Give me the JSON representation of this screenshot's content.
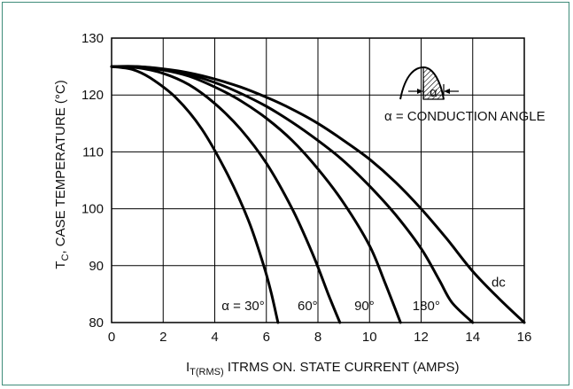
{
  "colors": {
    "frame": "#3f8c7a",
    "ink": "#000000"
  },
  "chart_data": {
    "type": "line",
    "ylabel_main": "T",
    "ylabel_sub": "C",
    "ylabel_rest": ", CASE TEMPERATURE (°C)",
    "xlabel_main": "I",
    "xlabel_sub": "T(RMS)",
    "xlabel_rest": " ITRMS ON. STATE CURRENT (AMPS)",
    "xlim": [
      0,
      16
    ],
    "ylim": [
      80,
      130
    ],
    "x_ticks": [
      0,
      2,
      4,
      6,
      8,
      10,
      12,
      14,
      16
    ],
    "y_ticks": [
      80,
      90,
      100,
      110,
      120,
      130
    ],
    "grid": true,
    "annotation": "α = CONDUCTION ANGLE",
    "inset_symbol": "α",
    "series": [
      {
        "name": "α = 30°",
        "points": [
          [
            0,
            125
          ],
          [
            0.8,
            124.5
          ],
          [
            1.5,
            123
          ],
          [
            2.5,
            119.5
          ],
          [
            3.5,
            114
          ],
          [
            4.5,
            106
          ],
          [
            5.3,
            98
          ],
          [
            5.9,
            90
          ],
          [
            6.2,
            85
          ],
          [
            6.45,
            80
          ]
        ]
      },
      {
        "name": "60°",
        "points": [
          [
            0,
            125
          ],
          [
            1,
            124.8
          ],
          [
            2,
            123.8
          ],
          [
            3,
            121.8
          ],
          [
            4,
            118.5
          ],
          [
            5,
            114
          ],
          [
            6,
            108
          ],
          [
            7,
            100
          ],
          [
            7.8,
            92
          ],
          [
            8.4,
            85
          ],
          [
            8.85,
            80
          ]
        ]
      },
      {
        "name": "90°",
        "points": [
          [
            0,
            125
          ],
          [
            1,
            124.9
          ],
          [
            2,
            124.4
          ],
          [
            3,
            123.3
          ],
          [
            4,
            121.4
          ],
          [
            5,
            119
          ],
          [
            6,
            115.9
          ],
          [
            7,
            112
          ],
          [
            8,
            107
          ],
          [
            9,
            101
          ],
          [
            10,
            93.5
          ],
          [
            10.6,
            87
          ],
          [
            11.2,
            80
          ]
        ]
      },
      {
        "name": "180°",
        "points": [
          [
            0,
            125
          ],
          [
            1,
            125
          ],
          [
            2,
            124.5
          ],
          [
            3,
            123.6
          ],
          [
            4,
            122.2
          ],
          [
            5,
            120.3
          ],
          [
            6,
            118
          ],
          [
            7,
            115.2
          ],
          [
            8,
            112
          ],
          [
            9,
            108.4
          ],
          [
            10,
            104
          ],
          [
            11,
            99
          ],
          [
            12,
            93
          ],
          [
            12.7,
            87.5
          ],
          [
            13.2,
            83.5
          ],
          [
            14,
            80
          ]
        ]
      },
      {
        "name": "dc",
        "points": [
          [
            0,
            125
          ],
          [
            1,
            125
          ],
          [
            2,
            124.6
          ],
          [
            3,
            123.9
          ],
          [
            4,
            122.8
          ],
          [
            5,
            121.4
          ],
          [
            6,
            119.6
          ],
          [
            7,
            117.5
          ],
          [
            8,
            115
          ],
          [
            9,
            112
          ],
          [
            10,
            108.7
          ],
          [
            11,
            104.7
          ],
          [
            12,
            100
          ],
          [
            13,
            94.7
          ],
          [
            14,
            89
          ],
          [
            15,
            84.3
          ],
          [
            16,
            80
          ]
        ]
      }
    ],
    "series_labels": [
      {
        "text": "α = 30°",
        "x": 5.1,
        "y": 82.2
      },
      {
        "text": "60°",
        "x": 7.6,
        "y": 82.2
      },
      {
        "text": "90°",
        "x": 9.8,
        "y": 82.2
      },
      {
        "text": "180°",
        "x": 12.2,
        "y": 82.2
      },
      {
        "text": "dc",
        "x": 15.0,
        "y": 86.3
      }
    ]
  }
}
